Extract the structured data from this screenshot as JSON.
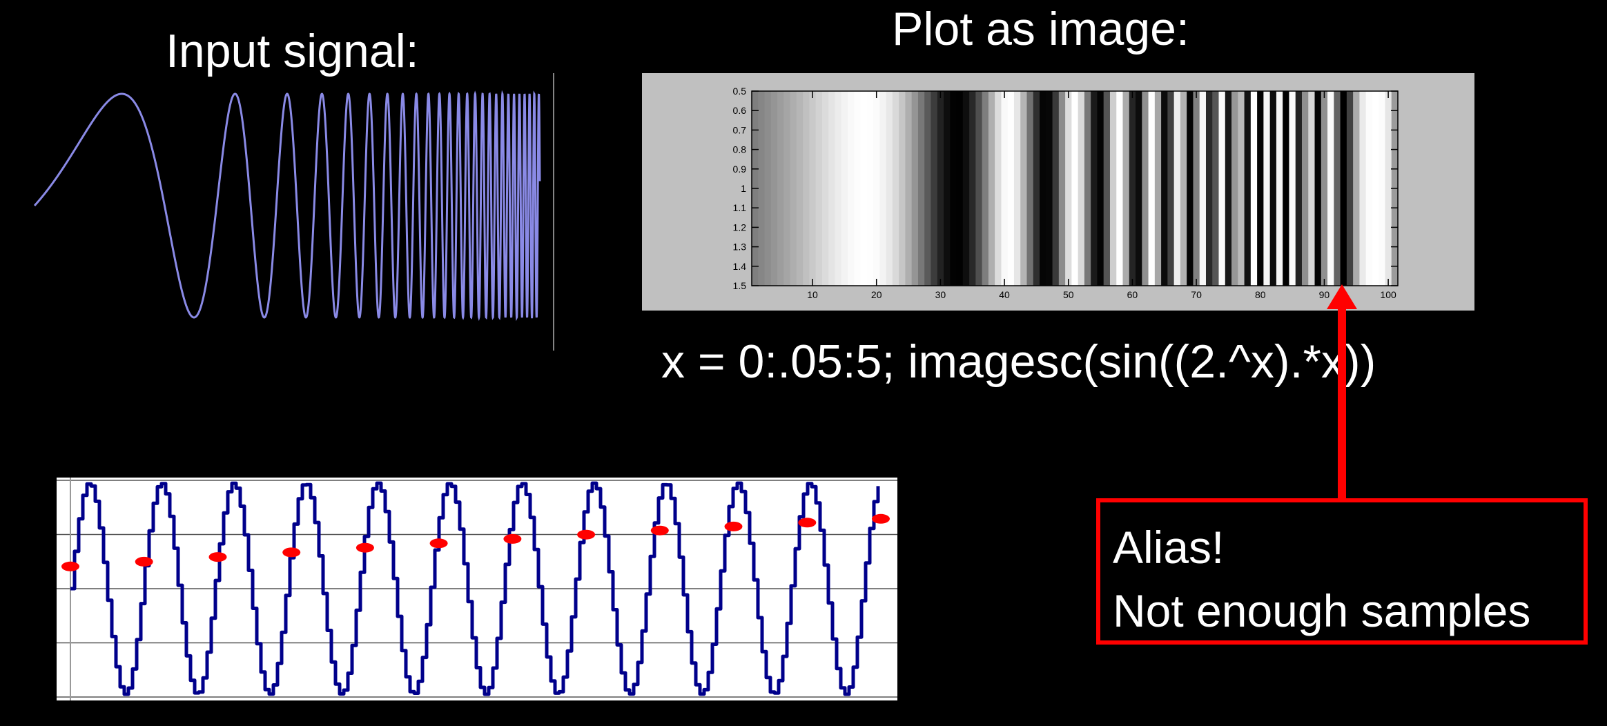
{
  "titles": {
    "input": "Input signal:",
    "plot": "Plot as image:"
  },
  "code": "x = 0:.05:5;  imagesc(sin((2.^x).*x))",
  "callout": {
    "line1": "Alias!",
    "line2": "Not enough samples"
  },
  "colors": {
    "background": "#000000",
    "text": "#ffffff",
    "chirp_line": "#8a8ae6",
    "sine_line": "#00008b",
    "sample_marker": "#ff0000",
    "callout_border": "#ff0000",
    "arrow": "#ff0000",
    "image_frame": "#c0c0c0"
  },
  "image_plot": {
    "x_ticks": [
      "10",
      "20",
      "30",
      "40",
      "50",
      "60",
      "70",
      "80",
      "90",
      "100"
    ],
    "y_ticks": [
      "0.5",
      "0.6",
      "0.7",
      "0.8",
      "0.9",
      "1",
      "1.1",
      "1.2",
      "1.3",
      "1.4",
      "1.5"
    ],
    "formula": "sin((2.^x).*x)",
    "x_start": 0,
    "x_step": 0.05,
    "x_end": 5
  },
  "chirp": {
    "formula": "sin((2.^x).*x)",
    "x_start": 0,
    "x_end": 5
  },
  "alias_plot": {
    "cycles": 11,
    "samples": 12,
    "gridlines": 5
  }
}
